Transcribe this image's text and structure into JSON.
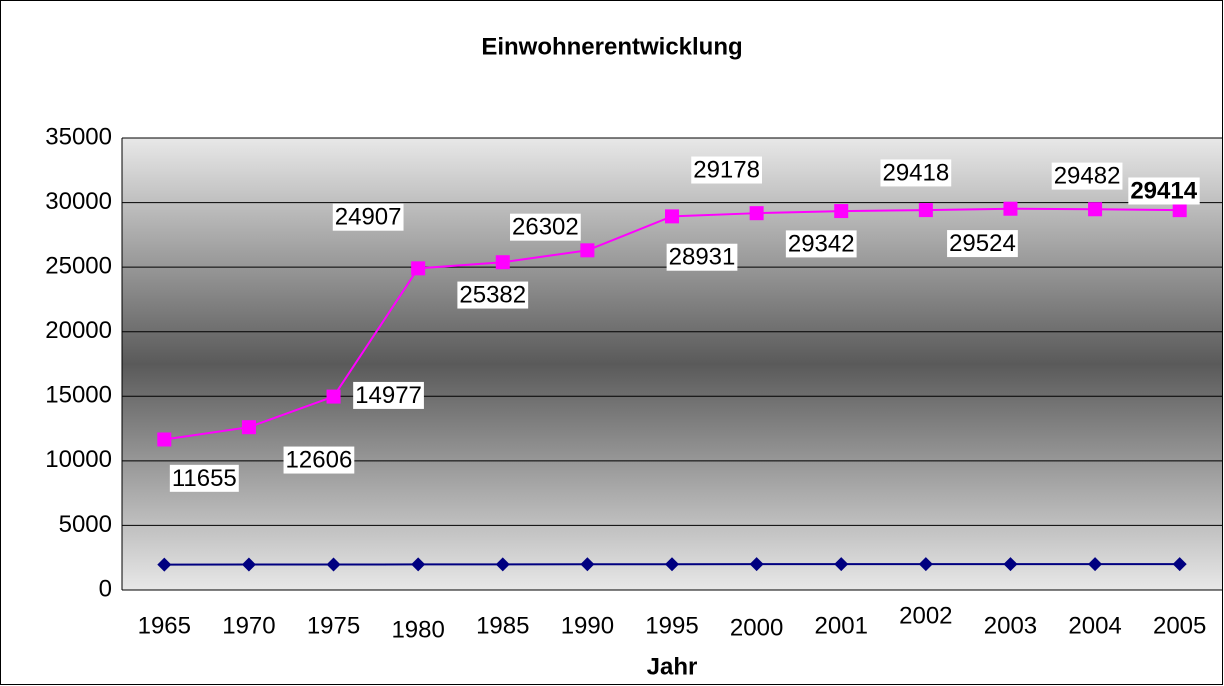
{
  "chart_data": {
    "type": "line",
    "title": "Einwohnerentwicklung",
    "x_label": "Jahr",
    "categories": [
      "1965",
      "1970",
      "1975",
      "1980",
      "1985",
      "1990",
      "1995",
      "2000",
      "2001",
      "2002",
      "2003",
      "2004",
      "2005"
    ],
    "series": [
      {
        "color": "#ff00ff",
        "marker": "square",
        "values": [
          11655,
          12606,
          14977,
          24907,
          25382,
          26302,
          28931,
          29178,
          29342,
          29418,
          29524,
          29482,
          29414
        ]
      },
      {
        "color": "#000080",
        "marker": "diamond",
        "values": [
          1965,
          1970,
          1975,
          1980,
          1985,
          1990,
          1995,
          2000,
          2001,
          2002,
          2003,
          2004,
          2005
        ]
      }
    ],
    "ylim": [
      0,
      35000
    ],
    "yticks": [
      0,
      5000,
      10000,
      15000,
      20000,
      25000,
      30000,
      35000
    ],
    "grid": true
  }
}
